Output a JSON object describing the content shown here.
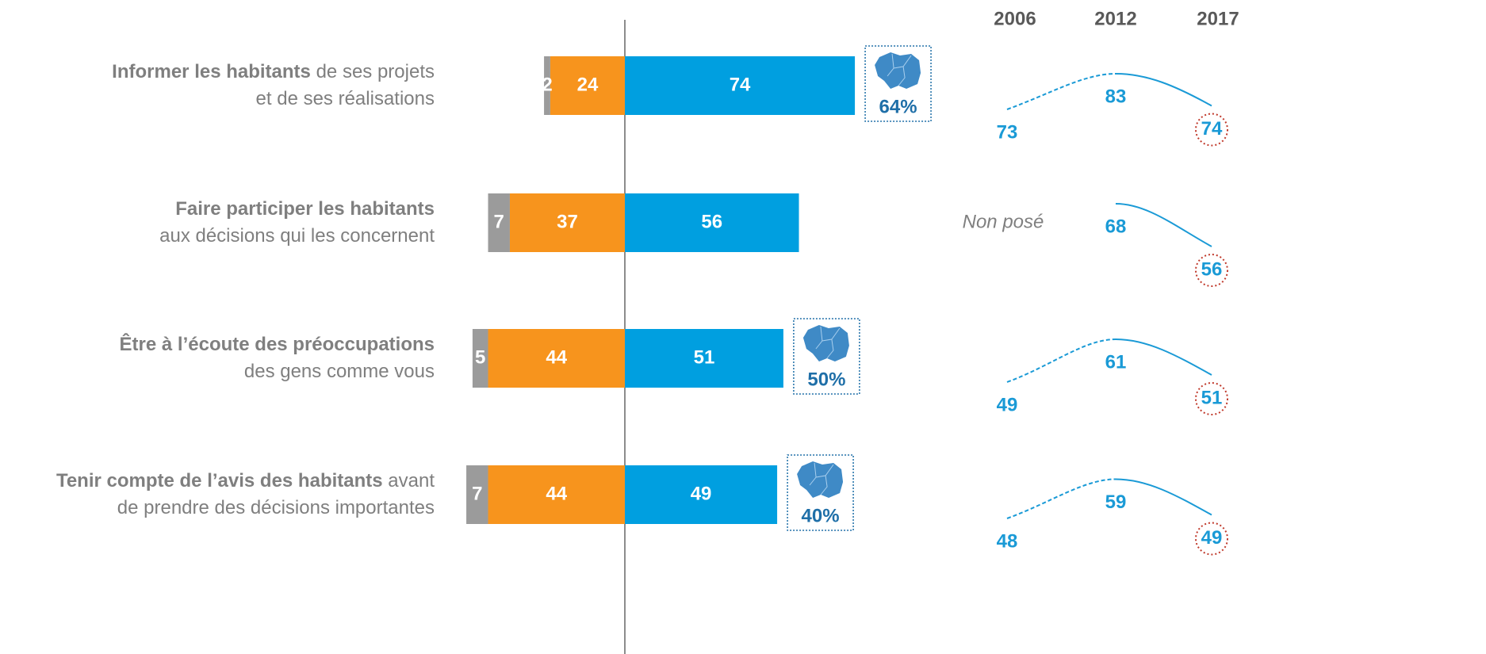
{
  "chart_data": {
    "type": "diverging_bar",
    "rows": [
      {
        "label": [
          [
            {
              "text": "Informer les habitants",
              "bold": true
            },
            {
              "text": " de ses projets"
            }
          ],
          [
            {
              "text": "et de ses réalisations"
            }
          ]
        ]
      },
      {
        "label": [
          [
            {
              "text": "Faire participer les habitants",
              "bold": true
            }
          ],
          [
            {
              "text": "aux décisions qui les concernent"
            }
          ]
        ]
      },
      {
        "label": [
          [
            {
              "text": "Être à l’écoute des préoccupations",
              "bold": true
            }
          ],
          [
            {
              "text": "des gens comme vous"
            }
          ]
        ]
      },
      {
        "label": [
          [
            {
              "text": "Tenir compte de l’avis des habitants",
              "bold": true
            },
            {
              "text": " avant"
            }
          ],
          [
            {
              "text": "de prendre des décisions importantes"
            }
          ]
        ]
      }
    ],
    "series": [
      {
        "color": "#9b9b9b",
        "side": "left",
        "values": [
          2,
          7,
          5,
          7
        ]
      },
      {
        "color": "#f7941d",
        "side": "left",
        "values": [
          24,
          37,
          44,
          44
        ]
      },
      {
        "color": "#009fe0",
        "side": "right",
        "values": [
          74,
          56,
          51,
          49
        ]
      }
    ],
    "regional_benchmark": {
      "values": [
        64,
        null,
        50,
        40
      ],
      "value_labels": [
        "64%",
        null,
        "50%",
        "40%"
      ],
      "color": "#1f6fa8"
    },
    "trend": {
      "years": [
        "2006",
        "2012",
        "2017"
      ],
      "color": "#1a9ad6",
      "values": [
        [
          73,
          83,
          74
        ],
        [
          null,
          68,
          56
        ],
        [
          49,
          61,
          51
        ],
        [
          48,
          59,
          49
        ]
      ],
      "missing_label": "Non posé"
    }
  }
}
